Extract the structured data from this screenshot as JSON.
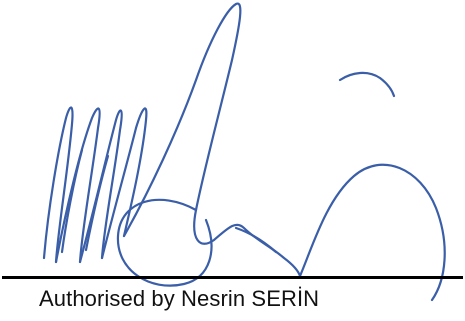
{
  "signature": {
    "icon": "handwritten-signature",
    "ink_color": "#3a5ea8"
  },
  "signature_line": {
    "color": "#000000"
  },
  "caption": {
    "text": "Authorised by Nesrin SERİN"
  }
}
